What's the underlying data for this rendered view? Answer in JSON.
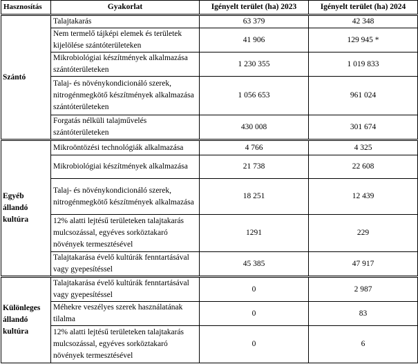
{
  "table": {
    "header": [
      "Hasznosítás",
      "Gyakorlat",
      "Igényelt terület (ha) 2023",
      "Igényelt terület (ha) 2024"
    ],
    "groups": [
      {
        "label": "Szántó",
        "rows": [
          [
            "Talajtakarás",
            "63 379",
            "42 348"
          ],
          [
            "Nem termelő tájképi elemek és területek kijelölése szántóterületeken",
            "41 906",
            "129 945 *"
          ],
          [
            "Mikrobiológiai készítmények alkalmazása szántóterületeken",
            "1 230 355",
            "1 019 833"
          ],
          [
            "Talaj- és növénykondicionáló szerek, nitrogénmegkötő készítmények alkalmazása szántóterületeken",
            "1 056 653",
            "961 024"
          ],
          [
            "Forgatás nélküli talajművelés szántóterületeken",
            "430 008",
            "301 674"
          ]
        ]
      },
      {
        "label": "Egyéb állandó kultúra",
        "rows": [
          [
            "Mikroöntözési technológiák alkalmazása",
            "4 766",
            "4 325"
          ],
          [
            "Mikrobiológiai készítmények alkalmazása",
            "21 738",
            "22 608"
          ],
          [
            "Talaj- és növénykondicionáló szerek, nitrogénmegkötő készítmények alkalmazása",
            "18 251",
            "12 439"
          ],
          [
            "12% alatti lejtésű területeken talajtakarás mulcsozással, egyéves sorköztakaró növények termesztésével",
            "1291",
            "229"
          ],
          [
            "Talajtakarása évelő kultúrák fenntartásával vagy gyepesítéssel",
            "45 385",
            "47 917"
          ]
        ]
      },
      {
        "label": "Különleges állandó kultúra",
        "rows": [
          [
            "Talajtakarása évelő kultúrák fenntartásával vagy gyepesítéssel",
            "0",
            "2 987"
          ],
          [
            "Méhekre veszélyes szerek használatának tilalma",
            "0",
            "83"
          ],
          [
            "12% alatti lejtésű területeken talajtakarás mulcsozással, egyéves sorköztakaró növények termesztésével",
            "0",
            "6"
          ]
        ]
      }
    ]
  }
}
